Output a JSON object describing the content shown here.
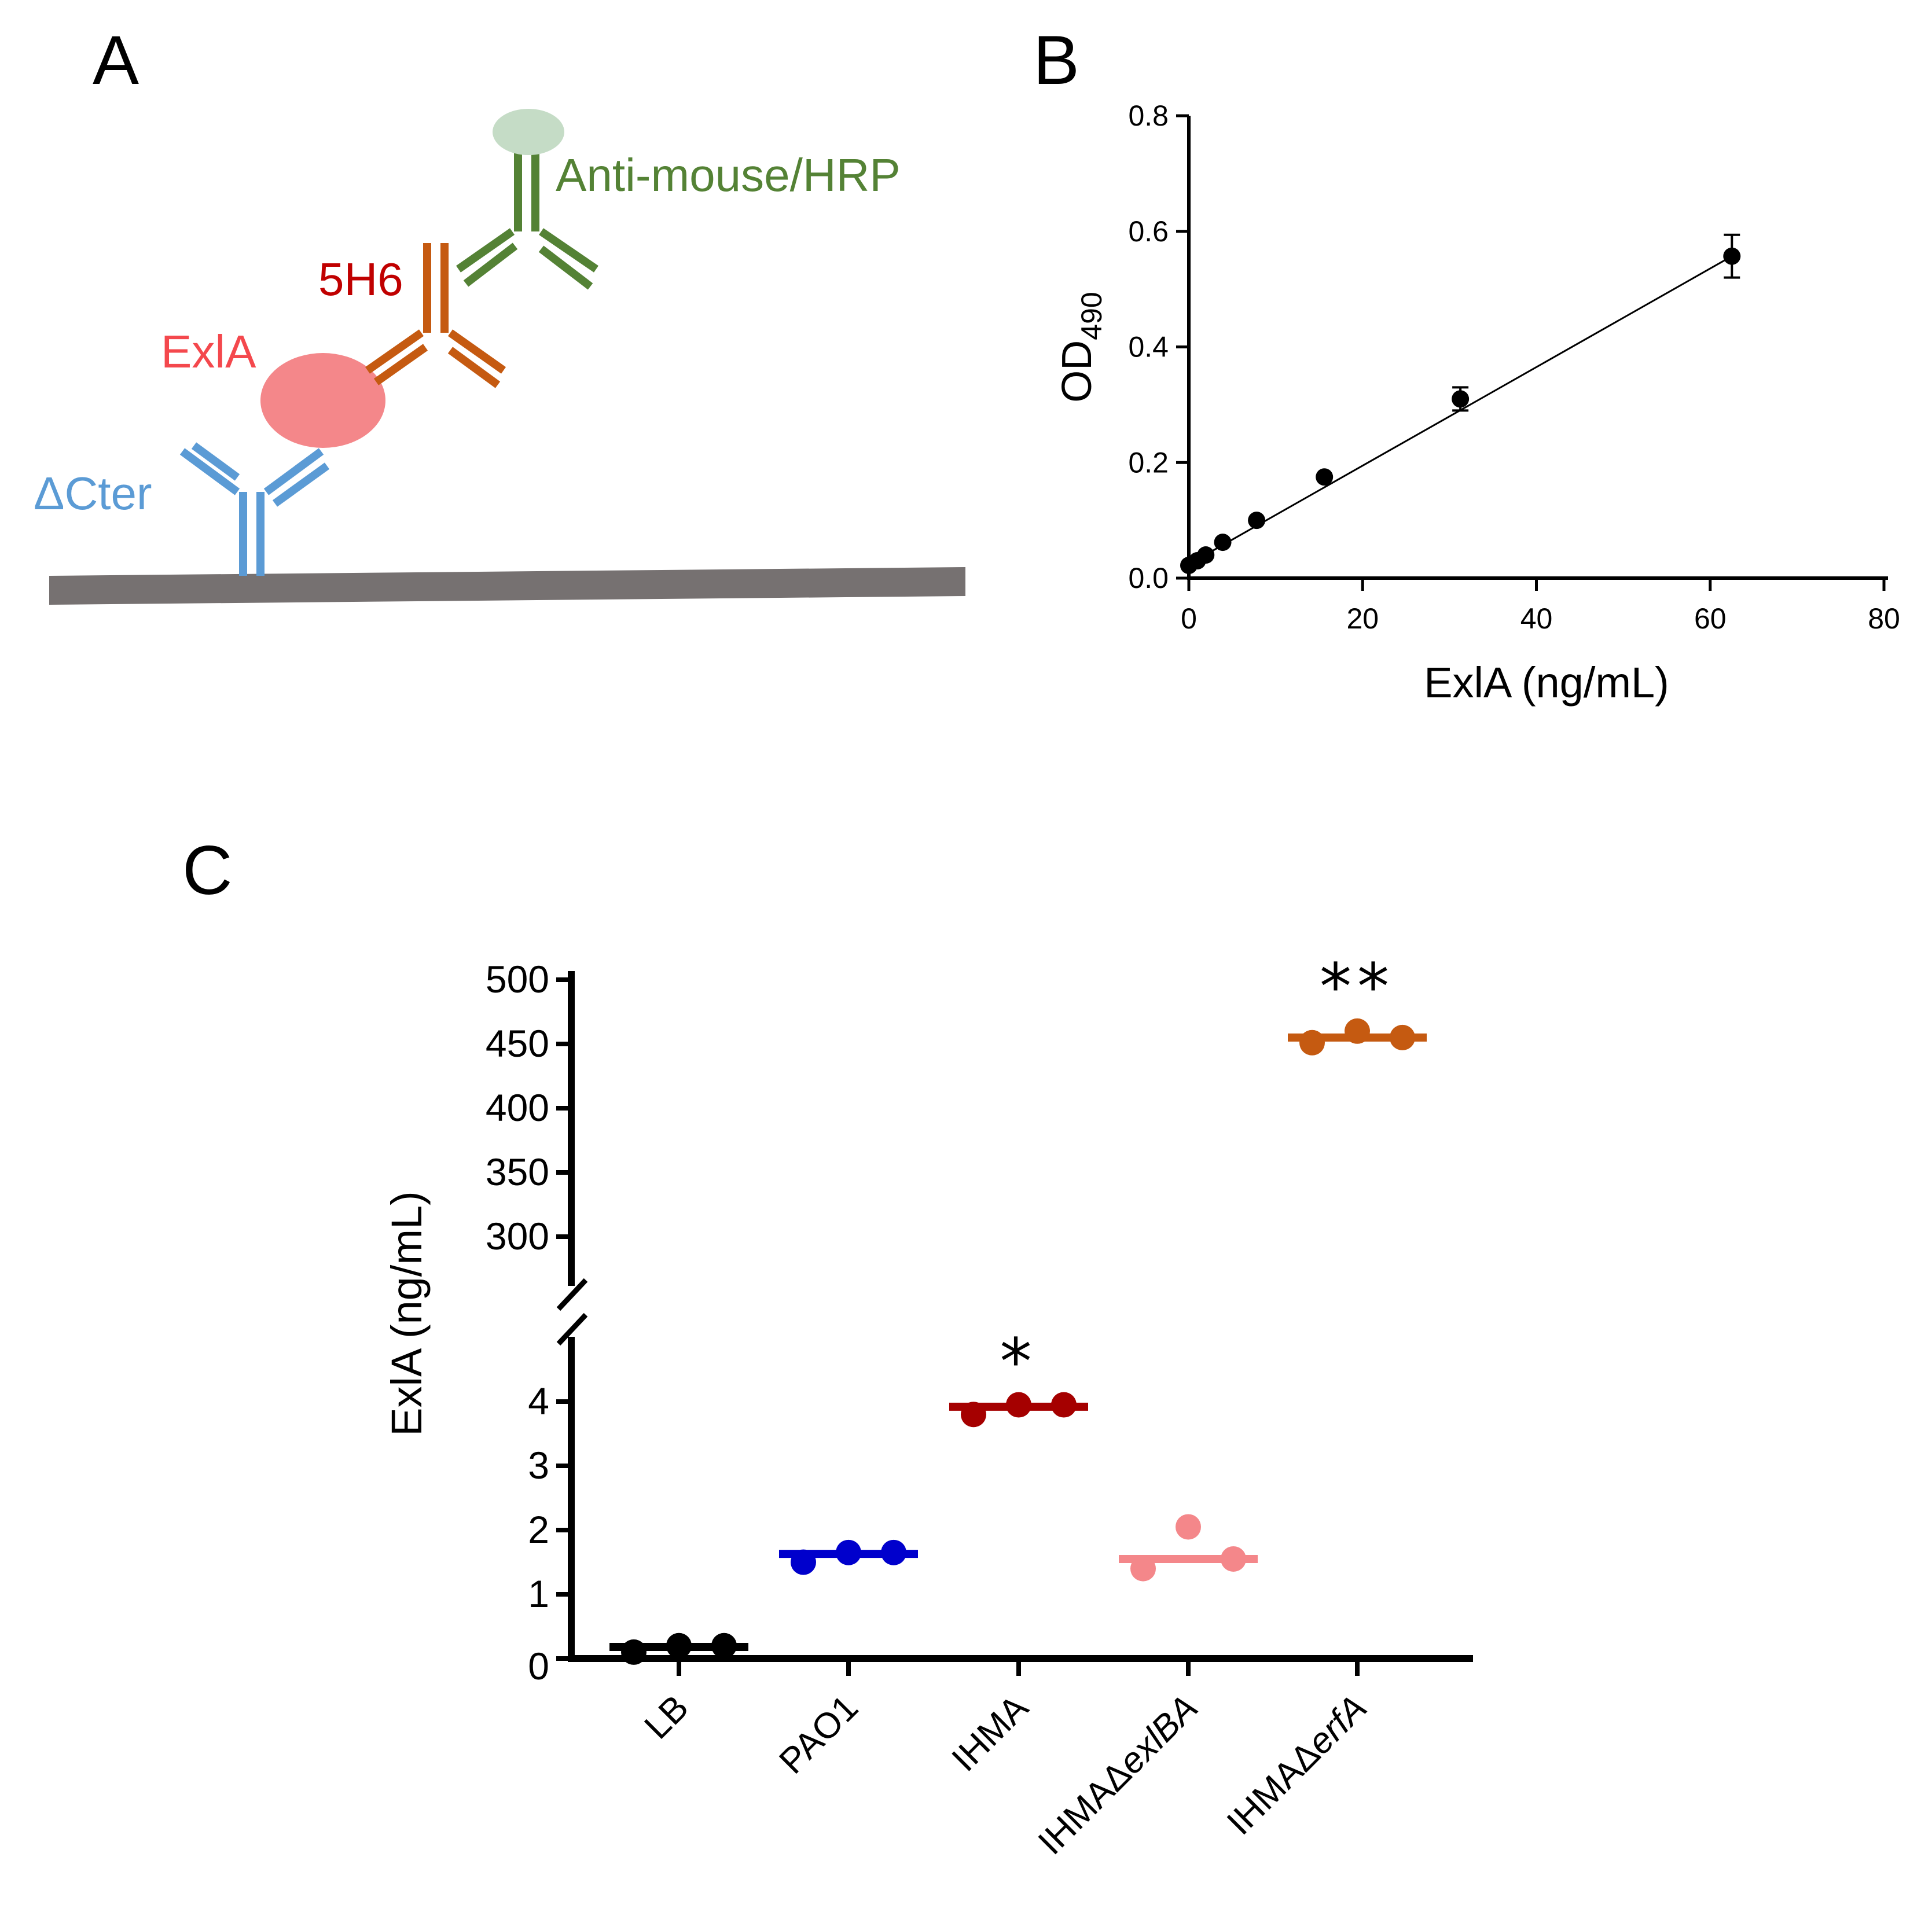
{
  "panels": {
    "a": {
      "letter": "A",
      "labels": {
        "secondary": "Anti-mouse/HRP",
        "primary": "5H6",
        "antigen": "ExlA",
        "capture": "ΔCter"
      },
      "colors": {
        "secondary": "#548235",
        "hrp": "#c5dcc6",
        "primary": "#c55a11",
        "primary_label": "#c00000",
        "antigen": "#f4878a",
        "antigen_label": "#f4484d",
        "capture": "#5b9bd5",
        "surface": "#767171"
      }
    },
    "b": {
      "letter": "B",
      "chart_data": {
        "type": "scatter",
        "title": "",
        "xlabel": "ExlA (ng/mL)",
        "ylabel_main": "OD",
        "ylabel_sub": "490",
        "xlim": [
          0,
          80
        ],
        "ylim": [
          0,
          0.8
        ],
        "x_ticks": [
          "0",
          "20",
          "40",
          "60",
          "80"
        ],
        "y_ticks": [
          "0.0",
          "0.2",
          "0.4",
          "0.6",
          "0.8"
        ],
        "x_tick_values": [
          0,
          20,
          40,
          60,
          80
        ],
        "y_tick_values": [
          0,
          0.2,
          0.4,
          0.6,
          0.8
        ],
        "points": [
          {
            "x": 0,
            "y": 0.022,
            "err": 0.004
          },
          {
            "x": 0.98,
            "y": 0.03,
            "err": 0.004
          },
          {
            "x": 1.95,
            "y": 0.04,
            "err": 0.004
          },
          {
            "x": 3.9,
            "y": 0.062,
            "err": 0.005
          },
          {
            "x": 7.8,
            "y": 0.1,
            "err": 0.006
          },
          {
            "x": 15.6,
            "y": 0.175,
            "err": 0.008
          },
          {
            "x": 31.25,
            "y": 0.31,
            "err": 0.02
          },
          {
            "x": 62.5,
            "y": 0.557,
            "err": 0.037
          }
        ],
        "fit_line": {
          "x": [
            0,
            62.5
          ],
          "y": [
            0.024,
            0.557
          ]
        }
      }
    },
    "c": {
      "letter": "C",
      "chart_data": {
        "type": "scatter",
        "title": "",
        "xlabel": "",
        "ylabel": "ExlA (ng/mL)",
        "y_lower_range": [
          0,
          5
        ],
        "y_upper_range": [
          260,
          500
        ],
        "y_ticks_lower": [
          "0",
          "1",
          "2",
          "3",
          "4"
        ],
        "y_ticks_upper": [
          "300",
          "350",
          "400",
          "450",
          "500"
        ],
        "y_tick_values_lower": [
          0,
          1,
          2,
          3,
          4
        ],
        "y_tick_values_upper": [
          300,
          350,
          400,
          450,
          500
        ],
        "categories": [
          "LB",
          "PAO1",
          "IHMA",
          "IHMAΔexlBA",
          "IHMAΔerfA"
        ],
        "category_parts": [
          {
            "plain": "LB",
            "italic": ""
          },
          {
            "plain": "PAO1",
            "italic": ""
          },
          {
            "plain": "IHMA",
            "italic": ""
          },
          {
            "plain": "IHMAΔ",
            "italic": "exlBA"
          },
          {
            "plain": "IHMAΔ",
            "italic": "erfA"
          }
        ],
        "series": [
          {
            "name": "LB",
            "color": "#000000",
            "values": [
              0.1,
              0.2,
              0.2
            ],
            "median": 0.18,
            "significance": ""
          },
          {
            "name": "PAO1",
            "color": "#0000cc",
            "values": [
              1.5,
              1.65,
              1.65
            ],
            "median": 1.63,
            "significance": ""
          },
          {
            "name": "IHMA",
            "color": "#a50000",
            "values": [
              3.8,
              3.95,
              3.95
            ],
            "median": 3.92,
            "significance": "*"
          },
          {
            "name": "IHMAΔexlBA",
            "color": "#f4878a",
            "values": [
              1.4,
              2.05,
              1.55
            ],
            "median": 1.55,
            "significance": ""
          },
          {
            "name": "IHMAΔerfA",
            "color": "#c55a11",
            "values": [
              451,
              460,
              455
            ],
            "median": 455,
            "significance": "**"
          }
        ]
      }
    }
  }
}
